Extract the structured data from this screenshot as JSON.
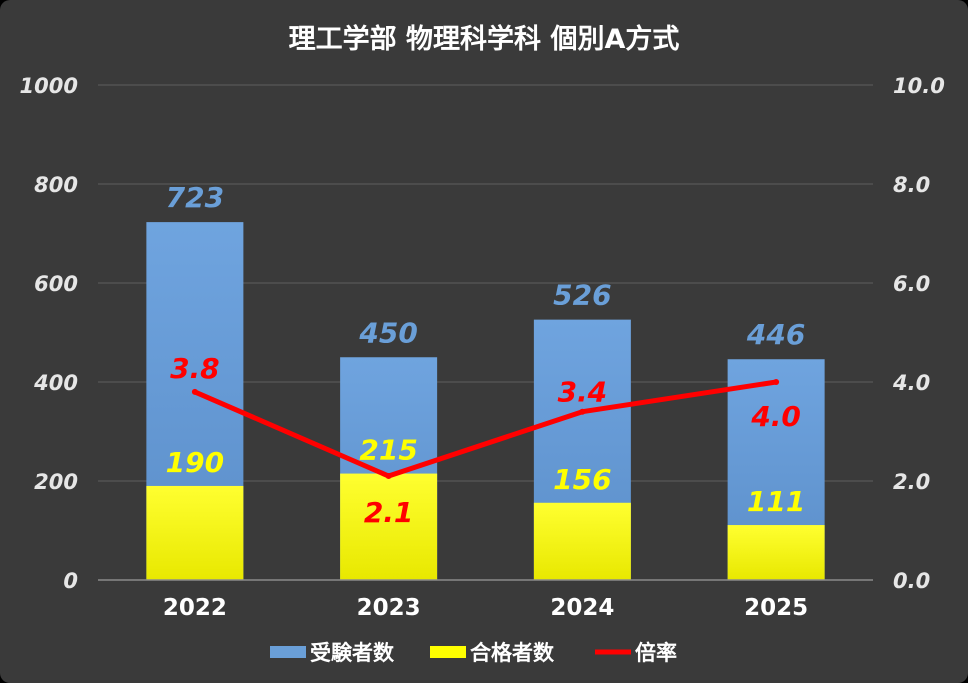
{
  "chart_data": {
    "type": "bar",
    "title": "理工学部 物理科学科 個別A方式",
    "categories": [
      "2022",
      "2023",
      "2024",
      "2025"
    ],
    "series": [
      {
        "name": "受験者数",
        "kind": "bar",
        "axis": "left",
        "values": [
          723,
          450,
          526,
          446
        ],
        "color": "#6a9fd8"
      },
      {
        "name": "合格者数",
        "kind": "bar",
        "axis": "left",
        "values": [
          190,
          215,
          156,
          111
        ],
        "color": "#ffff00"
      },
      {
        "name": "倍率",
        "kind": "line",
        "axis": "right",
        "values": [
          3.8,
          2.1,
          3.4,
          4.0
        ],
        "color": "#ff0000"
      }
    ],
    "y_left": {
      "min": 0,
      "max": 1000,
      "ticks": [
        "0",
        "200",
        "400",
        "600",
        "800",
        "1000"
      ]
    },
    "y_right": {
      "min": 0,
      "max": 10,
      "ticks": [
        "0.0",
        "2.0",
        "4.0",
        "6.0",
        "8.0",
        "10.0"
      ]
    },
    "grid": true,
    "legend_position": "bottom",
    "label_colors": {
      "applicants": "#6a9fd8",
      "passers": "#ffff00",
      "ratio": "#ff0000"
    }
  }
}
